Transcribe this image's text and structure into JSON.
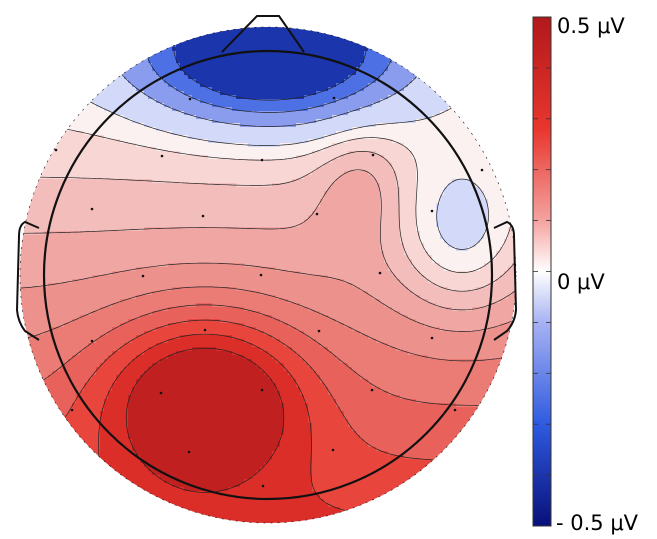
{
  "chart_data": {
    "type": "heatmap",
    "colorscale": {
      "max_label": "0.5 μV",
      "mid_label": "0 μV",
      "min_label": "- 0.5 μV",
      "range": [
        -0.5,
        0.5
      ],
      "units": "μV",
      "colors": {
        "max": "#b2181b",
        "high": "#e8362e",
        "mid": "#ffffff",
        "low": "#2f5ae0",
        "min": "#08107a"
      }
    },
    "contour_levels": [
      -0.3,
      -0.2,
      -0.1,
      0.0,
      0.05,
      0.1,
      0.15,
      0.2,
      0.25,
      0.3,
      0.35,
      0.4,
      0.45
    ],
    "head_outline": true,
    "electrodes_shown": true
  }
}
